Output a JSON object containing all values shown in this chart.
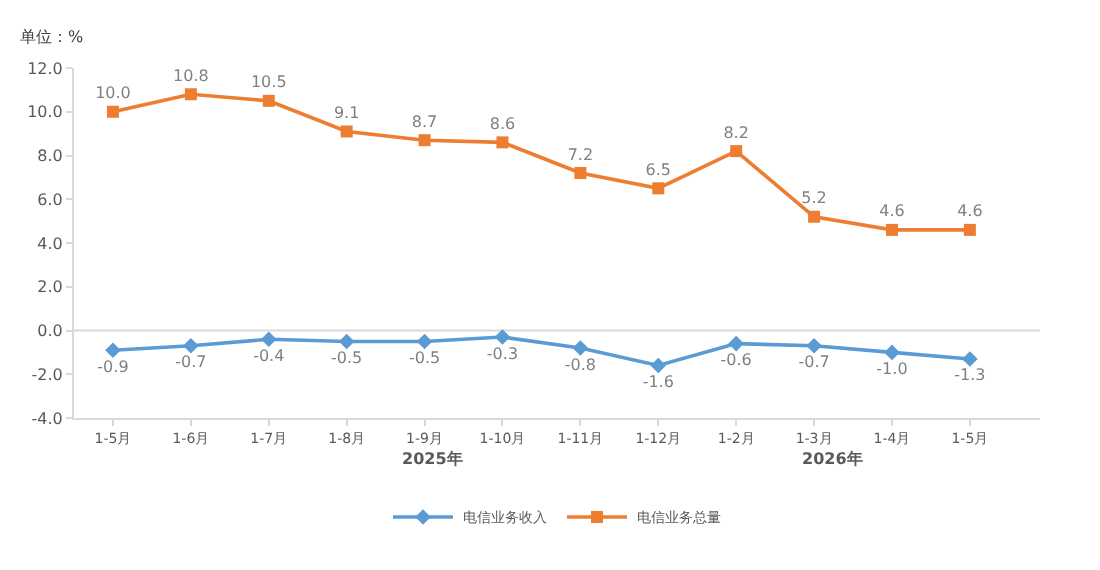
{
  "chart_data": {
    "type": "line",
    "ylabel": "单位：%",
    "categories": [
      "1-5月",
      "1-6月",
      "1-7月",
      "1-8月",
      "1-9月",
      "1-10月",
      "1-11月",
      "1-12月",
      "1-2月",
      "1-3月",
      "1-4月",
      "1-5月"
    ],
    "series": [
      {
        "name": "电信业务收入",
        "color": "#5b9bd5",
        "marker": "diamond",
        "values": [
          -0.9,
          -0.7,
          -0.4,
          -0.5,
          -0.5,
          -0.3,
          -0.8,
          -1.6,
          -0.6,
          -0.7,
          -1.0,
          -1.3
        ],
        "value_labels": [
          "-0.9",
          "-0.7",
          "-0.4",
          "-0.5",
          "-0.5",
          "-0.3",
          "-0.8",
          "-1.6",
          "-0.6",
          "-0.7",
          "-1.0",
          "-1.3"
        ]
      },
      {
        "name": "电信业务总量",
        "color": "#ed7d31",
        "marker": "square",
        "values": [
          10.0,
          10.8,
          10.5,
          9.1,
          8.7,
          8.6,
          7.2,
          6.5,
          8.2,
          5.2,
          4.6,
          4.6
        ],
        "value_labels": [
          "10.0",
          "10.8",
          "10.5",
          "9.1",
          "8.7",
          "8.6",
          "7.2",
          "6.5",
          "8.2",
          "5.2",
          "4.6",
          "4.6"
        ]
      }
    ],
    "ylim": [
      -4,
      12
    ],
    "yticks": [
      {
        "value": -4,
        "label": "-4.0"
      },
      {
        "value": -2,
        "label": "-2.0"
      },
      {
        "value": 0,
        "label": "0.0"
      },
      {
        "value": 2,
        "label": "2.0"
      },
      {
        "value": 4,
        "label": "4.0"
      },
      {
        "value": 6,
        "label": "6.0"
      },
      {
        "value": 8,
        "label": "8.0"
      },
      {
        "value": 10,
        "label": "10.0"
      },
      {
        "value": 12,
        "label": "12.0"
      }
    ],
    "annotations": [
      "2025年",
      "2026年"
    ],
    "ref_lines": [
      {
        "axis": "y",
        "value": 0,
        "color": "#d9d9d9"
      }
    ],
    "grid": false,
    "legend": "bottom"
  }
}
